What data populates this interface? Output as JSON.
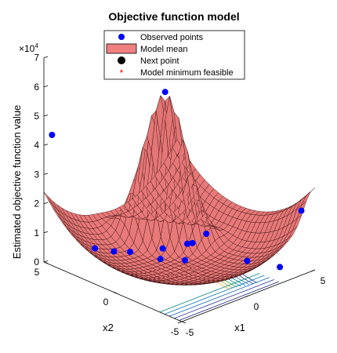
{
  "chart_data": {
    "type": "surface",
    "title": "Objective function model",
    "xlabel": "x1",
    "ylabel": "x2",
    "zlabel": "Estimated objective function value",
    "z_multiplier": "×10",
    "z_multiplier_exp": "4",
    "xlim": [
      -5,
      5
    ],
    "ylim": [
      -5,
      5
    ],
    "zlim": [
      0,
      7
    ],
    "x_ticks": [
      "-5",
      "0",
      "5"
    ],
    "y_ticks": [
      "-5",
      "0",
      "5"
    ],
    "z_ticks": [
      "0",
      "1",
      "2",
      "3",
      "4",
      "5",
      "6",
      "7"
    ],
    "legend": [
      {
        "label": "Observed points",
        "marker": "dot",
        "color": "#0000ff"
      },
      {
        "label": "Model mean",
        "marker": "patch",
        "color": "#f08080"
      },
      {
        "label": "Next point",
        "marker": "dot",
        "color": "#000000"
      },
      {
        "label": "Model minimum feasible",
        "marker": "star",
        "color": "#ff0000"
      }
    ],
    "legend_position": "top",
    "surface_color": "#f08080",
    "edge_color": "#2a0000",
    "point_color": "#0000ff",
    "observed_points": [
      {
        "x1": -4.8,
        "x2": 4.6,
        "z": 4.4
      },
      {
        "x1": 4.8,
        "x2": -4.2,
        "z": 1.9
      },
      {
        "x1": 1.2,
        "x2": 2.2,
        "z": 5.3
      },
      {
        "x1": 2.6,
        "x2": -2.4,
        "z": 0.2
      },
      {
        "x1": 3.6,
        "x2": -3.8,
        "z": 0.1
      },
      {
        "x1": -2.0,
        "x2": 4.2,
        "z": 0.1
      },
      {
        "x1": -0.8,
        "x2": 2.8,
        "z": 0.05
      },
      {
        "x1": 0.4,
        "x2": 1.6,
        "z": 0.2
      },
      {
        "x1": 1.0,
        "x2": 0.4,
        "z": 0.5
      },
      {
        "x1": 1.6,
        "x2": -0.4,
        "z": 0.9
      },
      {
        "x1": -0.4,
        "x2": 1.0,
        "z": 0.1
      },
      {
        "x1": 0.2,
        "x2": -0.2,
        "z": 0.2
      },
      {
        "x1": -1.4,
        "x2": 3.4,
        "z": 0.05
      },
      {
        "x1": 1.8,
        "x2": 0.8,
        "z": 0.3
      }
    ]
  }
}
